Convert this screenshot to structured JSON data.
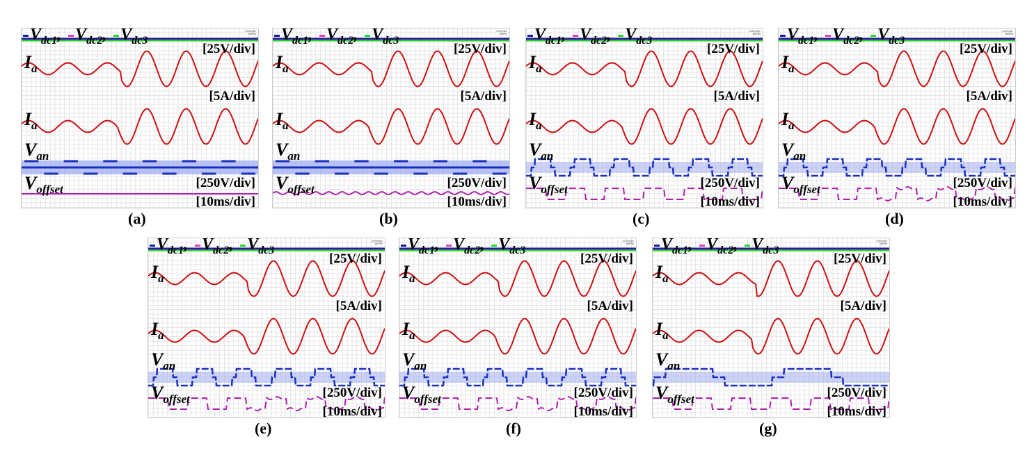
{
  "figure": {
    "legend": {
      "vdc1": "V",
      "vdc1_sub": "dc1",
      "vdc2": "V",
      "vdc2_sub": "dc2",
      "vdc3": "V",
      "vdc3_sub": "dc3",
      "sep": ","
    },
    "labels": {
      "ia": "I",
      "ia_sub": "a",
      "van": "V",
      "van_sub": "an",
      "voffset": "V",
      "voffset_sub": "offset"
    },
    "scales": {
      "vdc": "[25V/div]",
      "ia": "[5A/div]",
      "van": "[250V/div]",
      "time": "[10ms/div]"
    },
    "scope_corner": [
      "10ms/div",
      "5MPts"
    ],
    "colors": {
      "vdc1": "#1a1aa0",
      "vdc2": "#e040c0",
      "vdc3": "#22dd22",
      "ia": "#cc1111",
      "van": "#1a2fc0",
      "van_band": "#9aa8f0",
      "voffset": "#b020b0"
    }
  },
  "chart_data": [
    {
      "type": "line",
      "caption": "(a)",
      "time_window_ms": 100,
      "transient_ms": 42,
      "ia_amp_before_A": 2.5,
      "ia_amp_after_A": 7.5,
      "van_style": "pwm-band",
      "voffset_style": "flat"
    },
    {
      "type": "line",
      "caption": "(b)",
      "time_window_ms": 100,
      "transient_ms": 42,
      "ia_amp_before_A": 2.5,
      "ia_amp_after_A": 7.5,
      "van_style": "pwm-band",
      "voffset_style": "ripple"
    },
    {
      "type": "line",
      "caption": "(c)",
      "time_window_ms": 100,
      "transient_ms": 42,
      "ia_amp_before_A": 2.5,
      "ia_amp_after_A": 7.5,
      "van_style": "stepped",
      "voffset_style": "two-level-dashed"
    },
    {
      "type": "line",
      "caption": "(d)",
      "time_window_ms": 100,
      "transient_ms": 42,
      "ia_amp_before_A": 2.5,
      "ia_amp_after_A": 7.5,
      "van_style": "stepped",
      "voffset_style": "two-level-dashed-ripple"
    },
    {
      "type": "line",
      "caption": "(e)",
      "time_window_ms": 100,
      "transient_ms": 42,
      "ia_amp_before_A": 2.5,
      "ia_amp_after_A": 7.5,
      "van_style": "stepped",
      "voffset_style": "two-level-dashed-ripple"
    },
    {
      "type": "line",
      "caption": "(f)",
      "time_window_ms": 100,
      "transient_ms": 42,
      "ia_amp_before_A": 2.5,
      "ia_amp_after_A": 7.5,
      "van_style": "stepped",
      "voffset_style": "two-level-dashed-ripple"
    },
    {
      "type": "line",
      "caption": "(g)",
      "time_window_ms": 100,
      "transient_ms": 44,
      "ia_amp_before_A": 2.5,
      "ia_amp_after_A": 7.5,
      "van_style": "stepped-wide",
      "voffset_style": "multi-level"
    }
  ]
}
